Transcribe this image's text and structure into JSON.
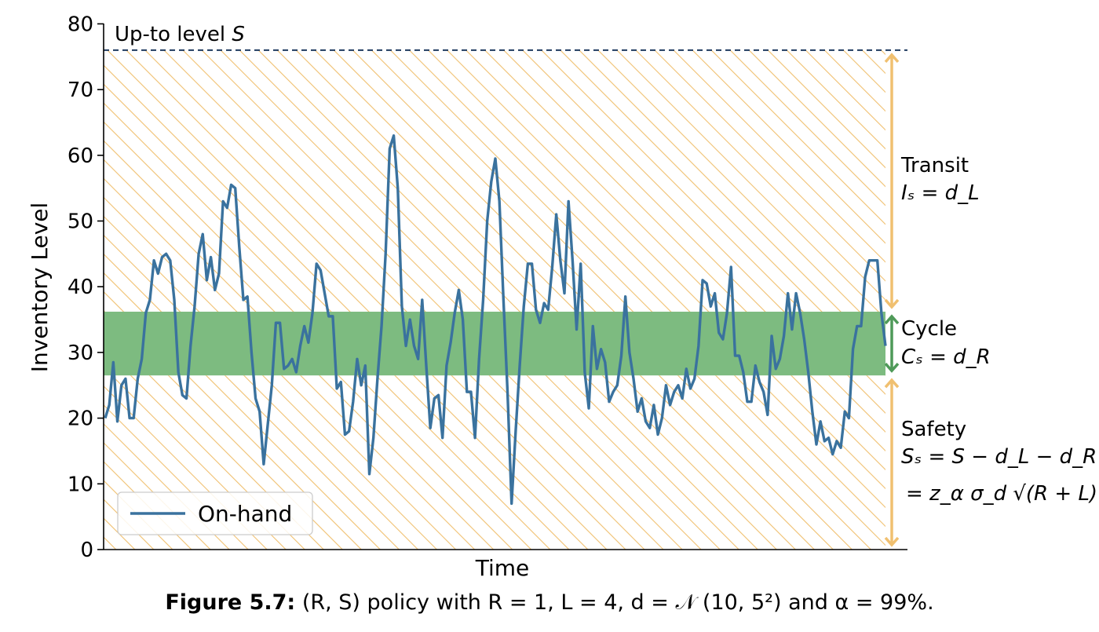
{
  "caption": {
    "label": "Figure 5.7:",
    "text": "(R, S) policy with R = 1, L = 4, d = 𝒩 (10, 5²) and α = 99%."
  },
  "chart_data": {
    "type": "line",
    "xlabel": "Time",
    "ylabel": "Inventory Level",
    "ylim": [
      0,
      80
    ],
    "yticks": [
      0,
      10,
      20,
      30,
      40,
      50,
      60,
      70,
      80
    ],
    "legend": {
      "placement": "bottom-left",
      "entries": [
        "On-hand"
      ]
    },
    "upto_level": {
      "value": 76,
      "label": "Up-to level S",
      "style": "dashed",
      "color": "#1f3a5f"
    },
    "bands": [
      {
        "name": "Safety",
        "from": 0,
        "to": 26.5,
        "fill": "hatch",
        "color": "#f0c070",
        "label": "Safety",
        "formula_1": "Sₛ = S − d_L − d_R",
        "formula_2": "= z_α σ_d √(R + L)"
      },
      {
        "name": "Cycle",
        "from": 26.5,
        "to": 36.2,
        "fill": "solid",
        "color": "#7dbb80",
        "label": "Cycle",
        "formula_1": "Cₛ = d_R"
      },
      {
        "name": "Transit",
        "from": 36.2,
        "to": 76,
        "fill": "hatch",
        "color": "#f0c070",
        "label": "Transit",
        "formula_1": "Iₛ = d_L"
      }
    ],
    "series": [
      {
        "name": "On-hand",
        "color": "#3a729e",
        "values": [
          20,
          22,
          28.5,
          19.5,
          25,
          26,
          20,
          20,
          26,
          29,
          36,
          38,
          44,
          42,
          44.5,
          45,
          44,
          38,
          27,
          23.5,
          23,
          31,
          37,
          45,
          48,
          41,
          44.5,
          39.5,
          42,
          53,
          52,
          55.5,
          55,
          46,
          38,
          38.5,
          30,
          23,
          21,
          13,
          19,
          25,
          34.5,
          34.5,
          27.5,
          28,
          29,
          27,
          31,
          34,
          31.5,
          36,
          43.5,
          42.5,
          39,
          35.5,
          35.5,
          24.5,
          25.5,
          17.5,
          18,
          22.5,
          29,
          25,
          28,
          11.5,
          17,
          26,
          34,
          45,
          61,
          63,
          55,
          37,
          31,
          35,
          31,
          29,
          38,
          28,
          18.5,
          23,
          23.5,
          17,
          28,
          31.5,
          36,
          39.5,
          35,
          24,
          24,
          17,
          29,
          38,
          50,
          56,
          59.5,
          53,
          38,
          24,
          7,
          18,
          28,
          37,
          43.5,
          43.5,
          36.5,
          34.5,
          37.5,
          36.5,
          43,
          51,
          44,
          39,
          53,
          44,
          33.5,
          43.5,
          27,
          21.5,
          34,
          27.5,
          30.5,
          28.5,
          22.5,
          24,
          25,
          29.5,
          38.5,
          30,
          26,
          21,
          23,
          19.5,
          18.5,
          22,
          17.5,
          20,
          25,
          22,
          24,
          25,
          23,
          27.5,
          24.5,
          26,
          31,
          41,
          40.5,
          37,
          39,
          33,
          32,
          36,
          43,
          29.5,
          29.5,
          27,
          22.5,
          22.5,
          28,
          25.5,
          24,
          20.5,
          32.5,
          27.5,
          29,
          32.5,
          39,
          33.5,
          39,
          36,
          32,
          27,
          21,
          16,
          19.5,
          16.5,
          17,
          14.5,
          16.5,
          15.5,
          21,
          20,
          30.5,
          34,
          34,
          41.5,
          44,
          44,
          44,
          36,
          31
        ]
      }
    ]
  }
}
